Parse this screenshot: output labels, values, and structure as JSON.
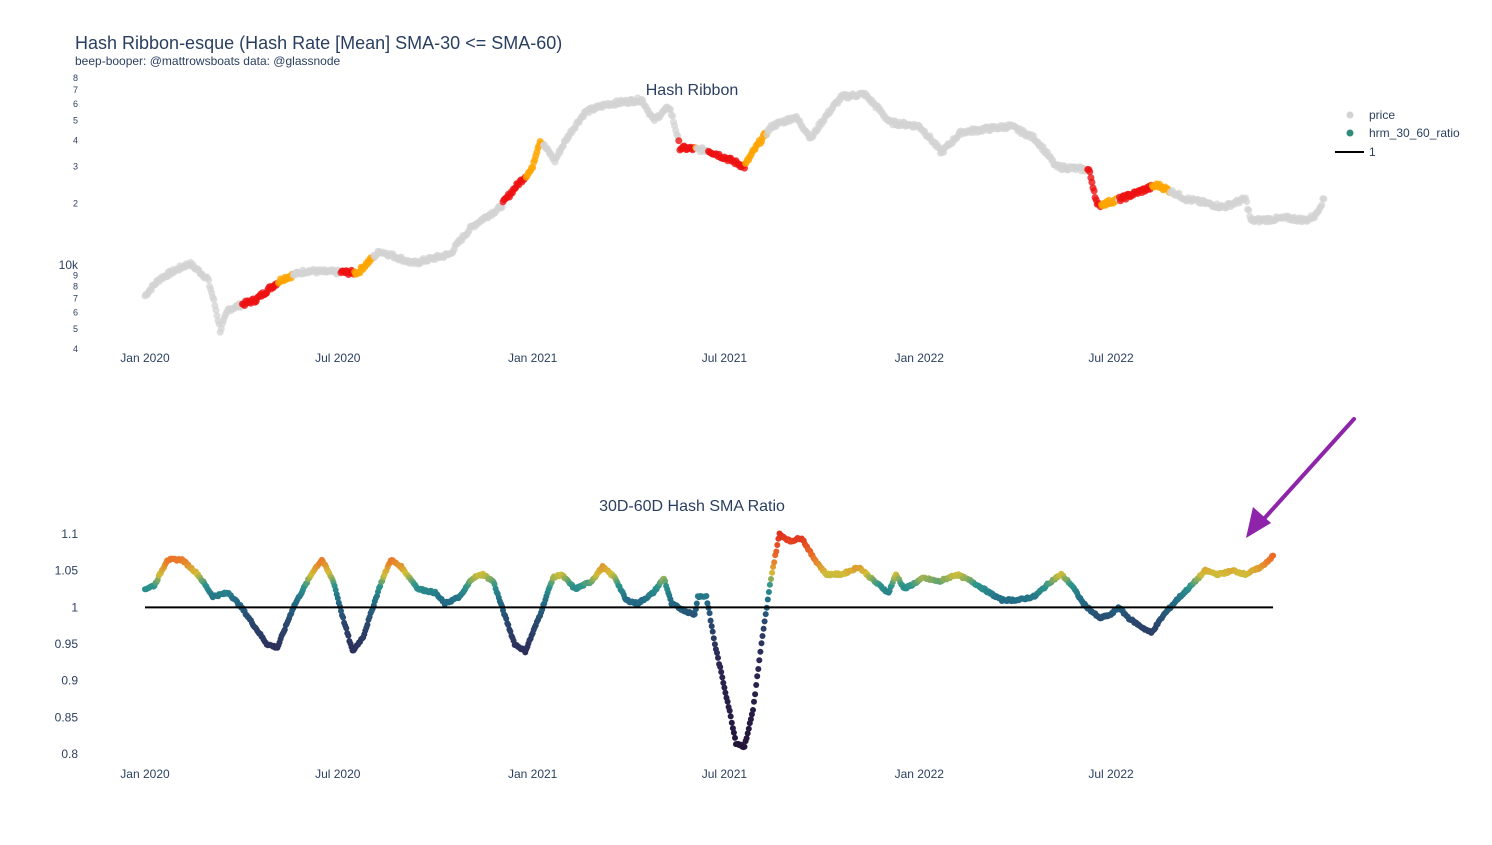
{
  "title": "Hash Ribbon-esque (Hash Rate [Mean] SMA-30 <= SMA-60)",
  "subtitle": "beep-booper: @mattrowsboats data: @glassnode",
  "colors": {
    "price_gray": "#d3d3d3",
    "capitulation_red": "#ee1111",
    "recovery_orange": "#ffa500",
    "legend_marker": "#2e8b7a",
    "arrow": "#8e24aa",
    "baseline": "#000000",
    "text": "#2a3f5f"
  },
  "chart_data": [
    {
      "type": "scatter",
      "title": "Hash Ribbon",
      "yscale": "log",
      "ylim": [
        4000,
        80000
      ],
      "x_ticks": [
        "Jan 2020",
        "Jul 2020",
        "Jan 2021",
        "Jul 2021",
        "Jan 2022",
        "Jul 2022"
      ],
      "y_ticks": [
        "4",
        "5",
        "6",
        "7",
        "8",
        "9",
        "10k",
        "2",
        "3",
        "4",
        "5",
        "6",
        "7",
        "8"
      ],
      "legend": [
        {
          "name": "price",
          "marker": "gray-dot"
        },
        {
          "name": "hrm_30_60_ratio",
          "marker": "teal-dot"
        },
        {
          "name": "1",
          "marker": "black-line"
        }
      ],
      "x": [
        "2020-01",
        "2020-02",
        "2020-03",
        "2020-04",
        "2020-05",
        "2020-06",
        "2020-07",
        "2020-08",
        "2020-09",
        "2020-10",
        "2020-11",
        "2020-12",
        "2021-01",
        "2021-02",
        "2021-03",
        "2021-04",
        "2021-05",
        "2021-06",
        "2021-07",
        "2021-08",
        "2021-09",
        "2021-10",
        "2021-11",
        "2021-12",
        "2022-01",
        "2022-02",
        "2022-03",
        "2022-04",
        "2022-05",
        "2022-06",
        "2022-07",
        "2022-08",
        "2022-09",
        "2022-10",
        "2022-11",
        "2022-12",
        "2023-01"
      ],
      "price_knots": [
        {
          "date": "2020-01-01",
          "value": 7200
        },
        {
          "date": "2020-01-15",
          "value": 8700
        },
        {
          "date": "2020-02-12",
          "value": 10300
        },
        {
          "date": "2020-02-29",
          "value": 8700
        },
        {
          "date": "2020-03-12",
          "value": 4900
        },
        {
          "date": "2020-03-20",
          "value": 6200
        },
        {
          "date": "2020-04-15",
          "value": 6900
        },
        {
          "date": "2020-05-10",
          "value": 8700
        },
        {
          "date": "2020-06-01",
          "value": 9500
        },
        {
          "date": "2020-06-15",
          "value": 9400
        },
        {
          "date": "2020-07-20",
          "value": 9300
        },
        {
          "date": "2020-08-10",
          "value": 11800
        },
        {
          "date": "2020-09-10",
          "value": 10300
        },
        {
          "date": "2020-10-15",
          "value": 11400
        },
        {
          "date": "2020-11-05",
          "value": 15500
        },
        {
          "date": "2020-12-01",
          "value": 19000
        },
        {
          "date": "2020-12-31",
          "value": 29000
        },
        {
          "date": "2021-01-08",
          "value": 40000
        },
        {
          "date": "2021-01-22",
          "value": 32000
        },
        {
          "date": "2021-02-20",
          "value": 55000
        },
        {
          "date": "2021-03-13",
          "value": 60000
        },
        {
          "date": "2021-04-14",
          "value": 63000
        },
        {
          "date": "2021-04-25",
          "value": 50000
        },
        {
          "date": "2021-05-10",
          "value": 58000
        },
        {
          "date": "2021-05-20",
          "value": 37000
        },
        {
          "date": "2021-06-15",
          "value": 36000
        },
        {
          "date": "2021-07-20",
          "value": 30000
        },
        {
          "date": "2021-08-15",
          "value": 47000
        },
        {
          "date": "2021-09-06",
          "value": 52000
        },
        {
          "date": "2021-09-21",
          "value": 41000
        },
        {
          "date": "2021-10-20",
          "value": 65000
        },
        {
          "date": "2021-11-10",
          "value": 67000
        },
        {
          "date": "2021-12-04",
          "value": 49000
        },
        {
          "date": "2022-01-01",
          "value": 47000
        },
        {
          "date": "2022-01-22",
          "value": 35000
        },
        {
          "date": "2022-02-10",
          "value": 44000
        },
        {
          "date": "2022-03-28",
          "value": 47000
        },
        {
          "date": "2022-04-20",
          "value": 41000
        },
        {
          "date": "2022-05-10",
          "value": 30000
        },
        {
          "date": "2022-06-10",
          "value": 29000
        },
        {
          "date": "2022-06-18",
          "value": 19500
        },
        {
          "date": "2022-07-10",
          "value": 21000
        },
        {
          "date": "2022-08-14",
          "value": 24500
        },
        {
          "date": "2022-09-10",
          "value": 21000
        },
        {
          "date": "2022-10-15",
          "value": 19200
        },
        {
          "date": "2022-11-05",
          "value": 21000
        },
        {
          "date": "2022-11-10",
          "value": 16500
        },
        {
          "date": "2022-12-15",
          "value": 17000
        },
        {
          "date": "2023-01-01",
          "value": 16600
        },
        {
          "date": "2023-01-10",
          "value": 17500
        },
        {
          "date": "2023-01-18",
          "value": 21000
        }
      ]
    },
    {
      "type": "scatter",
      "title": "30D-60D Hash SMA Ratio",
      "ylim": [
        0.79,
        1.11
      ],
      "y_ticks": [
        0.8,
        0.85,
        0.9,
        0.95,
        1,
        1.05,
        1.1
      ],
      "y_tick_labels": [
        "0.8",
        "0.85",
        "0.9",
        "0.95",
        "1",
        "1.05",
        "1.1"
      ],
      "x_ticks": [
        "Jan 2020",
        "Jul 2020",
        "Jan 2021",
        "Jul 2021",
        "Jan 2022",
        "Jul 2022"
      ],
      "reference_line": 1,
      "series_name": "hrm_30_60_ratio",
      "ratio_knots": [
        {
          "date": "2020-01-01",
          "value": 1.025
        },
        {
          "date": "2020-01-10",
          "value": 1.03
        },
        {
          "date": "2020-01-22",
          "value": 1.065
        },
        {
          "date": "2020-02-05",
          "value": 1.065
        },
        {
          "date": "2020-02-20",
          "value": 1.045
        },
        {
          "date": "2020-03-05",
          "value": 1.015
        },
        {
          "date": "2020-03-20",
          "value": 1.02
        },
        {
          "date": "2020-04-01",
          "value": 1.0
        },
        {
          "date": "2020-04-25",
          "value": 0.95
        },
        {
          "date": "2020-05-05",
          "value": 0.945
        },
        {
          "date": "2020-05-20",
          "value": 1.0
        },
        {
          "date": "2020-06-08",
          "value": 1.05
        },
        {
          "date": "2020-06-16",
          "value": 1.065
        },
        {
          "date": "2020-06-27",
          "value": 1.035
        },
        {
          "date": "2020-07-05",
          "value": 0.99
        },
        {
          "date": "2020-07-15",
          "value": 0.94
        },
        {
          "date": "2020-07-25",
          "value": 0.96
        },
        {
          "date": "2020-08-10",
          "value": 1.03
        },
        {
          "date": "2020-08-20",
          "value": 1.065
        },
        {
          "date": "2020-08-30",
          "value": 1.055
        },
        {
          "date": "2020-09-15",
          "value": 1.025
        },
        {
          "date": "2020-10-01",
          "value": 1.02
        },
        {
          "date": "2020-10-10",
          "value": 1.005
        },
        {
          "date": "2020-10-25",
          "value": 1.015
        },
        {
          "date": "2020-11-05",
          "value": 1.04
        },
        {
          "date": "2020-11-15",
          "value": 1.045
        },
        {
          "date": "2020-11-25",
          "value": 1.035
        },
        {
          "date": "2020-12-03",
          "value": 1.0
        },
        {
          "date": "2020-12-15",
          "value": 0.95
        },
        {
          "date": "2020-12-25",
          "value": 0.94
        },
        {
          "date": "2021-01-08",
          "value": 0.99
        },
        {
          "date": "2021-01-20",
          "value": 1.04
        },
        {
          "date": "2021-01-28",
          "value": 1.045
        },
        {
          "date": "2021-02-10",
          "value": 1.025
        },
        {
          "date": "2021-02-25",
          "value": 1.035
        },
        {
          "date": "2021-03-08",
          "value": 1.055
        },
        {
          "date": "2021-03-20",
          "value": 1.04
        },
        {
          "date": "2021-03-30",
          "value": 1.01
        },
        {
          "date": "2021-04-10",
          "value": 1.005
        },
        {
          "date": "2021-04-25",
          "value": 1.02
        },
        {
          "date": "2021-05-05",
          "value": 1.04
        },
        {
          "date": "2021-05-12",
          "value": 1.005
        },
        {
          "date": "2021-05-25",
          "value": 0.995
        },
        {
          "date": "2021-06-03",
          "value": 0.99
        },
        {
          "date": "2021-06-06",
          "value": 1.015
        },
        {
          "date": "2021-06-14",
          "value": 1.015
        },
        {
          "date": "2021-06-22",
          "value": 0.95
        },
        {
          "date": "2021-07-05",
          "value": 0.865
        },
        {
          "date": "2021-07-12",
          "value": 0.815
        },
        {
          "date": "2021-07-20",
          "value": 0.81
        },
        {
          "date": "2021-07-28",
          "value": 0.86
        },
        {
          "date": "2021-08-05",
          "value": 0.95
        },
        {
          "date": "2021-08-14",
          "value": 1.04
        },
        {
          "date": "2021-08-22",
          "value": 1.1
        },
        {
          "date": "2021-09-01",
          "value": 1.09
        },
        {
          "date": "2021-09-12",
          "value": 1.095
        },
        {
          "date": "2021-09-22",
          "value": 1.07
        },
        {
          "date": "2021-10-05",
          "value": 1.045
        },
        {
          "date": "2021-10-20",
          "value": 1.045
        },
        {
          "date": "2021-11-05",
          "value": 1.055
        },
        {
          "date": "2021-11-20",
          "value": 1.035
        },
        {
          "date": "2021-12-03",
          "value": 1.02
        },
        {
          "date": "2021-12-10",
          "value": 1.045
        },
        {
          "date": "2021-12-18",
          "value": 1.025
        },
        {
          "date": "2022-01-05",
          "value": 1.04
        },
        {
          "date": "2022-01-20",
          "value": 1.035
        },
        {
          "date": "2022-02-05",
          "value": 1.045
        },
        {
          "date": "2022-02-20",
          "value": 1.035
        },
        {
          "date": "2022-03-08",
          "value": 1.02
        },
        {
          "date": "2022-03-20",
          "value": 1.01
        },
        {
          "date": "2022-04-05",
          "value": 1.01
        },
        {
          "date": "2022-04-20",
          "value": 1.015
        },
        {
          "date": "2022-05-05",
          "value": 1.035
        },
        {
          "date": "2022-05-15",
          "value": 1.045
        },
        {
          "date": "2022-05-25",
          "value": 1.03
        },
        {
          "date": "2022-06-05",
          "value": 1.005
        },
        {
          "date": "2022-06-20",
          "value": 0.985
        },
        {
          "date": "2022-07-01",
          "value": 0.99
        },
        {
          "date": "2022-07-08",
          "value": 1.0
        },
        {
          "date": "2022-07-18",
          "value": 0.985
        },
        {
          "date": "2022-07-28",
          "value": 0.975
        },
        {
          "date": "2022-08-08",
          "value": 0.965
        },
        {
          "date": "2022-08-20",
          "value": 0.99
        },
        {
          "date": "2022-09-01",
          "value": 1.01
        },
        {
          "date": "2022-09-15",
          "value": 1.03
        },
        {
          "date": "2022-09-28",
          "value": 1.05
        },
        {
          "date": "2022-10-10",
          "value": 1.045
        },
        {
          "date": "2022-10-25",
          "value": 1.05
        },
        {
          "date": "2022-11-05",
          "value": 1.045
        },
        {
          "date": "2022-11-20",
          "value": 1.055
        },
        {
          "date": "2022-12-01",
          "value": 1.07
        }
      ],
      "annotation": "arrow pointing at latest value"
    }
  ]
}
